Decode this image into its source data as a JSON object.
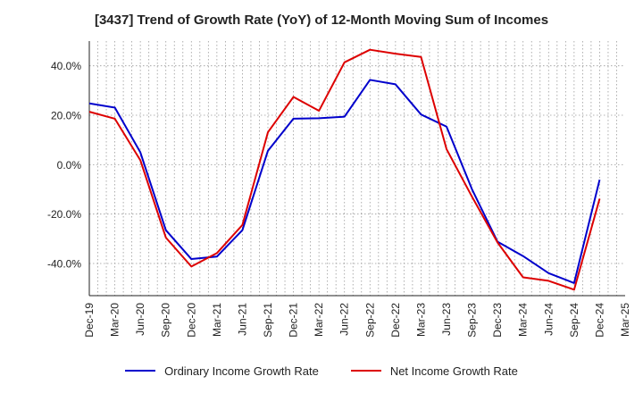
{
  "chart_data": {
    "type": "line",
    "title": "[3437]  Trend of Growth Rate (YoY) of 12-Month Moving Sum of Incomes",
    "xlabel": "",
    "ylabel": "",
    "x": [
      "Dec-19",
      "Mar-20",
      "Jun-20",
      "Sep-20",
      "Dec-20",
      "Mar-21",
      "Jun-21",
      "Sep-21",
      "Dec-21",
      "Mar-22",
      "Jun-22",
      "Sep-22",
      "Dec-22",
      "Mar-23",
      "Jun-23",
      "Sep-23",
      "Dec-23",
      "Mar-24",
      "Jun-24",
      "Sep-24",
      "Dec-24",
      "Mar-25"
    ],
    "x_tick_labels": [
      "Dec-19",
      "Mar-20",
      "Jun-20",
      "Sep-20",
      "Dec-20",
      "Mar-21",
      "Jun-21",
      "Sep-21",
      "Dec-21",
      "Mar-22",
      "Jun-22",
      "Sep-22",
      "Dec-22",
      "Mar-23",
      "Jun-23",
      "Sep-23",
      "Dec-23",
      "Mar-24",
      "Jun-24",
      "Sep-24",
      "Dec-24",
      "Mar-25"
    ],
    "y_ticks": [
      40,
      20,
      0,
      -20,
      -40
    ],
    "y_tick_labels": [
      "40.0%",
      "20.0%",
      "0.0%",
      "-20.0%",
      "-40.0%"
    ],
    "ylim": [
      -53,
      50
    ],
    "grid": true,
    "legend_position": "bottom",
    "series": [
      {
        "name": "Ordinary Income Growth Rate",
        "color": "#0000cc",
        "values": [
          24.8,
          23.1,
          5.0,
          -26.5,
          -38.2,
          -37.2,
          -26.5,
          5.6,
          18.6,
          18.8,
          19.4,
          34.3,
          32.5,
          20.3,
          15.4,
          -10.0,
          -31.2,
          -37.0,
          -43.9,
          -47.9,
          -6.1,
          null
        ]
      },
      {
        "name": "Net Income Growth Rate",
        "color": "#dd0000",
        "values": [
          21.4,
          18.6,
          1.8,
          -29.5,
          -41.2,
          -35.8,
          -24.4,
          13.1,
          27.4,
          21.8,
          41.4,
          46.5,
          44.9,
          43.6,
          6.3,
          -13.0,
          -31.5,
          -45.6,
          -47.0,
          -50.6,
          -13.8,
          null
        ]
      }
    ]
  }
}
